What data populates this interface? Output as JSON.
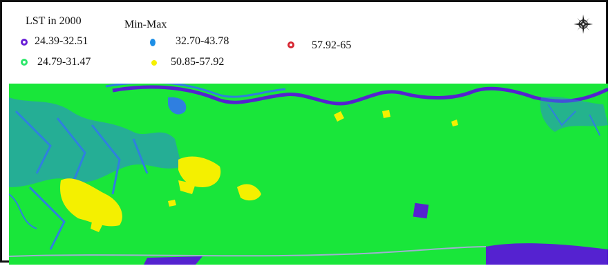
{
  "legend": {
    "title": "LST in 2000",
    "subtitle": "Min-Max",
    "items": [
      {
        "label": "24.39-32.51",
        "color": "#6a1fd6"
      },
      {
        "label": "24.79-31.47",
        "color": "#2ee86a"
      },
      {
        "label": "32.70-43.78",
        "color": "#1d8fe6"
      },
      {
        "label": "50.85-57.92",
        "color": "#f6f000"
      },
      {
        "label": "57.92-65",
        "color": "#d62833"
      }
    ]
  },
  "icons": {
    "north": "compass-rose-icon"
  },
  "colors": {
    "ground": "#19e63a",
    "water": "#2f7fe0",
    "river": "#5522d0",
    "hot": "#f4f000"
  }
}
